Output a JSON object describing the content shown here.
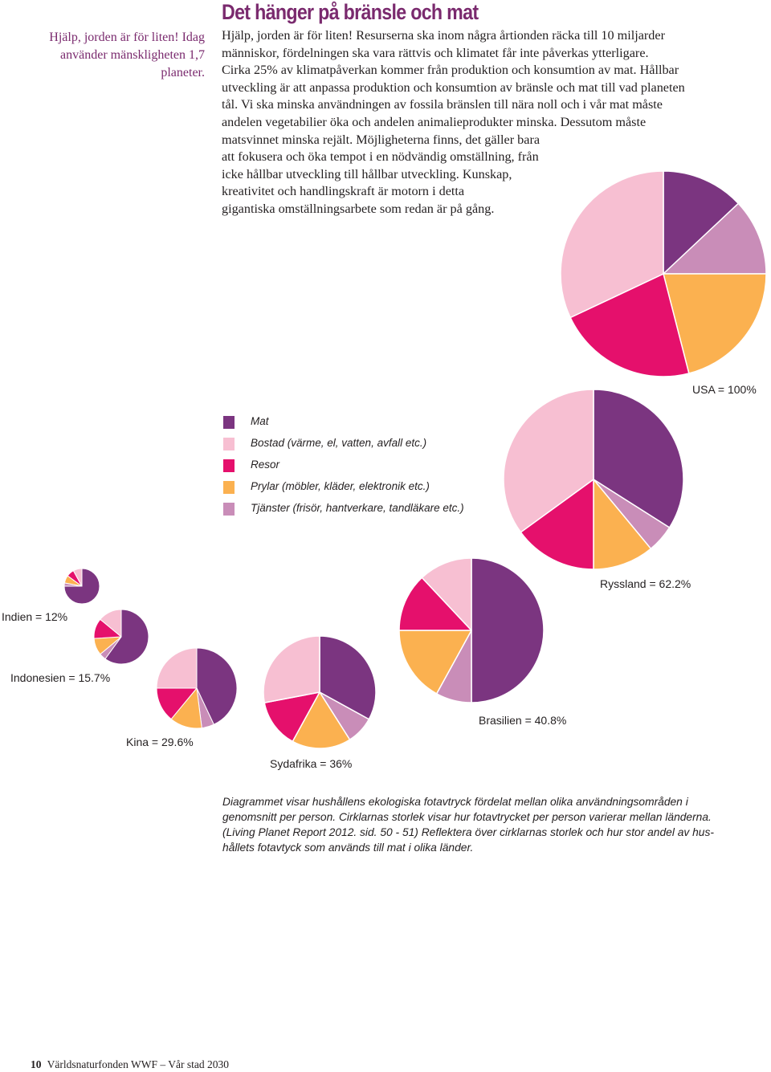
{
  "sidenote": "Hjälp, jorden är för liten! Idag använder mänskligheten 1,7 planeter.",
  "title": "Det hänger på bränsle och mat",
  "body_lines": [
    "Hjälp, jorden är för liten! Resurserna ska inom några årtionden räcka till 10 miljarder",
    "människor, fördelningen ska vara rättvis och klimatet får inte påverkas ytterligare.",
    "Cirka 25% av klimatpåverkan kommer från produktion och konsumtion av mat. Hållbar",
    "utveckling är att anpassa produktion och konsumtion av bränsle och mat till vad planeten",
    "tål. Vi ska minska användningen av fossila bränslen till nära noll och i vår mat måste",
    "andelen vegetabilier öka och andelen animalieprodukter minska. Dessutom måste",
    "matsvinnet minska rejält. Möjligheterna finns, det gäller bara",
    "att fokusera och öka tempot i en nödvändig omställning, från",
    "icke hållbar utveckling till hållbar utveckling. Kunskap,",
    "kreativitet och handlingskraft är motorn i detta",
    "gigantiska omställningsarbete som redan är på gång."
  ],
  "legend": [
    {
      "label": "Mat",
      "color": "#7b3580"
    },
    {
      "label": "Bostad (värme, el, vatten, avfall etc.)",
      "color": "#f7bfd2"
    },
    {
      "label": "Resor",
      "color": "#e5106c"
    },
    {
      "label": "Prylar (möbler, kläder, elektronik etc.)",
      "color": "#fbb150"
    },
    {
      "label": "Tjänster (frisör, hantverkare, tandläkare etc.)",
      "color": "#c98db8"
    }
  ],
  "chart_data": {
    "type": "pie",
    "categories": [
      "Mat",
      "Bostad (värme, el, vatten, avfall etc.)",
      "Resor",
      "Prylar (möbler, kläder, elektronik etc.)",
      "Tjänster (frisör, hantverkare, tandläkare etc.)"
    ],
    "colors": [
      "#7b3580",
      "#f7bfd2",
      "#e5106c",
      "#fbb150",
      "#c98db8"
    ],
    "pies": [
      {
        "label": "USA = 100%",
        "size_percent": 100,
        "shares": {
          "Mat": 13,
          "Tjänster (frisör, hantverkare, tandläkare etc.)": 12,
          "Prylar (möbler, kläder, elektronik etc.)": 21,
          "Resor": 22,
          "Bostad (värme, el, vatten, avfall etc.)": 32
        }
      },
      {
        "label": "Ryssland = 62.2%",
        "size_percent": 62.2,
        "shares": {
          "Mat": 34,
          "Tjänster (frisör, hantverkare, tandläkare etc.)": 5,
          "Prylar (möbler, kläder, elektronik etc.)": 11,
          "Resor": 15,
          "Bostad (värme, el, vatten, avfall etc.)": 35
        }
      },
      {
        "label": "Brasilien = 40.8%",
        "size_percent": 40.8,
        "shares": {
          "Mat": 50,
          "Tjänster (frisör, hantverkare, tandläkare etc.)": 8,
          "Prylar (möbler, kläder, elektronik etc.)": 17,
          "Resor": 13,
          "Bostad (värme, el, vatten, avfall etc.)": 12
        }
      },
      {
        "label": "Sydafrika = 36%",
        "size_percent": 36,
        "shares": {
          "Mat": 33,
          "Tjänster (frisör, hantverkare, tandläkare etc.)": 8,
          "Prylar (möbler, kläder, elektronik etc.)": 17,
          "Resor": 14,
          "Bostad (värme, el, vatten, avfall etc.)": 28
        }
      },
      {
        "label": "Kina = 29.6%",
        "size_percent": 29.6,
        "shares": {
          "Mat": 43,
          "Tjänster (frisör, hantverkare, tandläkare etc.)": 5,
          "Prylar (möbler, kläder, elektronik etc.)": 13,
          "Resor": 14,
          "Bostad (värme, el, vatten, avfall etc.)": 25
        }
      },
      {
        "label": "Indonesien = 15.7%",
        "size_percent": 15.7,
        "shares": {
          "Mat": 60,
          "Tjänster (frisör, hantverkare, tandläkare etc.)": 4,
          "Prylar (möbler, kläder, elektronik etc.)": 10,
          "Resor": 12,
          "Bostad (värme, el, vatten, avfall etc.)": 14
        }
      },
      {
        "label": "Indien = 12%",
        "size_percent": 12,
        "shares": {
          "Mat": 75,
          "Tjänster (frisör, hantverkare, tandläkare etc.)": 3,
          "Prylar (möbler, kläder, elektronik etc.)": 7,
          "Resor": 7,
          "Bostad (värme, el, vatten, avfall etc.)": 8
        }
      }
    ]
  },
  "caption_lines": [
    "Diagrammet visar hushållens ekologiska fotavtryck fördelat mellan olika användningsområden i",
    "genomsnitt per person. Cirklarnas storlek visar hur fotavtrycket per person varierar mellan länderna.",
    "(Living Planet Report 2012. sid. 50 - 51) Reflektera över cirklarnas storlek och hur stor andel av hus-",
    "hållets fotavtyck som används till mat i olika länder."
  ],
  "footer": {
    "page": "10",
    "text": "Världsnaturfonden WWF – Vår stad 2030"
  }
}
